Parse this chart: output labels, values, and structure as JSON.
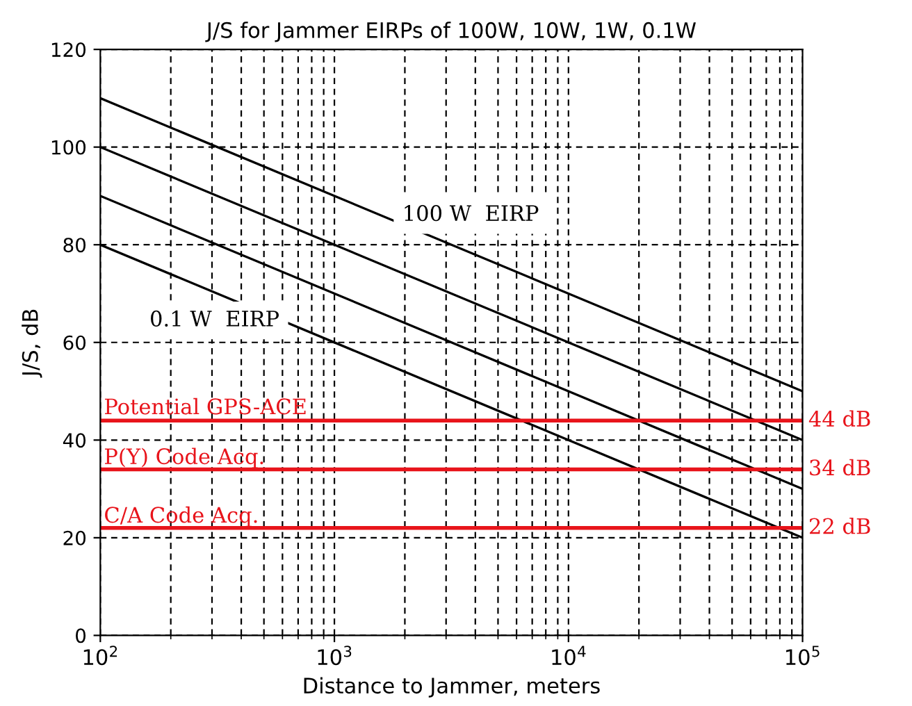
{
  "chart_data": {
    "type": "line",
    "title": "J/S for Jammer EIRPs of 100W, 10W, 1W, 0.1W",
    "xlabel": "Distance to Jammer, meters",
    "ylabel": "J/S, dB",
    "x": [
      100,
      100000
    ],
    "series": [
      {
        "color": "#000000",
        "values": [
          110,
          50
        ]
      },
      {
        "color": "#000000",
        "values": [
          100,
          40
        ]
      },
      {
        "color": "#000000",
        "values": [
          90,
          30
        ]
      },
      {
        "color": "#000000",
        "values": [
          80,
          20
        ]
      }
    ],
    "log": "x",
    "xlim": [
      100,
      100000
    ],
    "ylim": [
      0,
      120
    ],
    "xticks": [
      {
        "value": 100,
        "label": "10$^{2}$"
      },
      {
        "value": 1000,
        "label": "10$^{3}$"
      },
      {
        "value": 10000,
        "label": "10$^{4}$"
      },
      {
        "value": 100000,
        "label": "10$^{5}$"
      }
    ],
    "yticks": [
      0,
      20,
      40,
      60,
      80,
      100,
      120
    ],
    "grid": true,
    "marker": "none",
    "line_style": "solid",
    "ref_lines": [
      {
        "axis": "y",
        "value": 44,
        "label": "44 dB",
        "color": "#e8141b"
      },
      {
        "axis": "y",
        "value": 34,
        "label": "34 dB",
        "color": "#e8141b"
      },
      {
        "axis": "y",
        "value": 22,
        "label": "22 dB",
        "color": "#e8141b"
      }
    ],
    "annotations": [
      "100 W  EIRP",
      "0.1 W  EIRP",
      "Potential GPS-ACE",
      "P(Y) Code Acq.",
      "C/A Code Acq."
    ]
  }
}
